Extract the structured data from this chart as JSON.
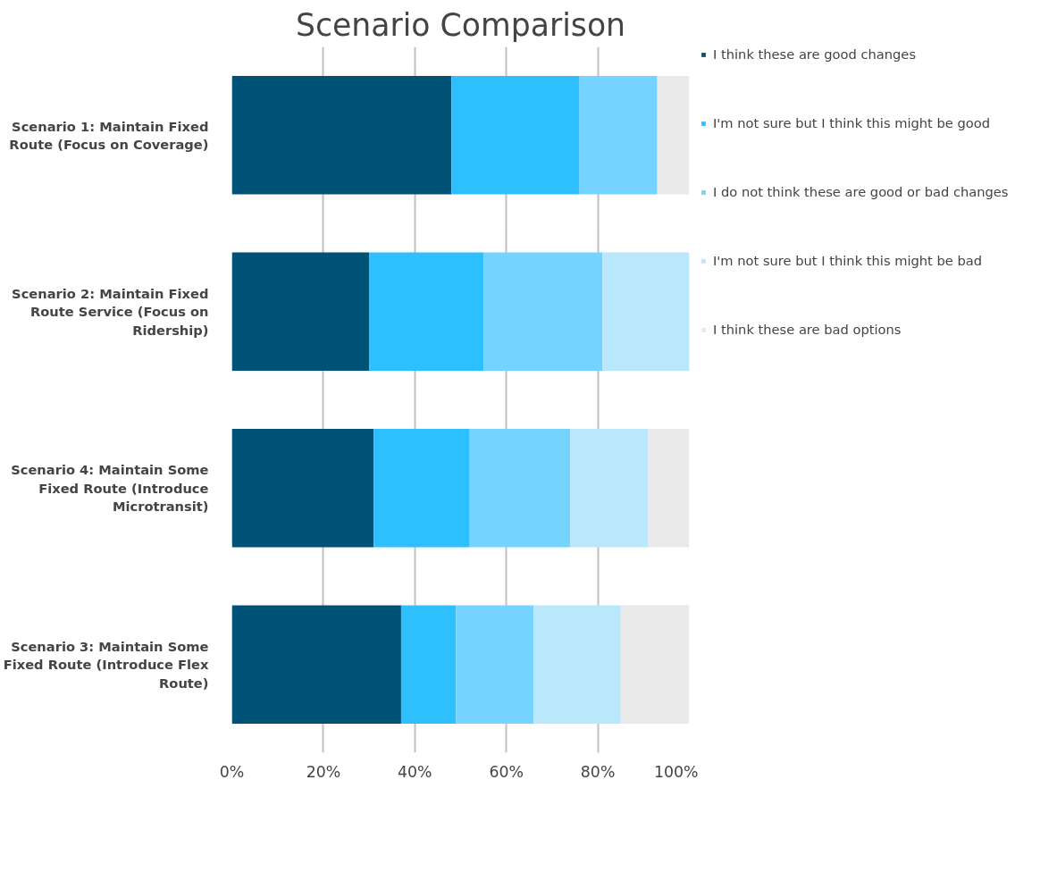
{
  "chart_data": {
    "type": "bar",
    "title": "Scenario Comparison",
    "orientation": "horizontal",
    "stacked": true,
    "categories": [
      "Scenario 1: Maintain Fixed Route (Focus on Coverage)",
      "Scenario 2: Maintain Fixed Route Service (Focus on Ridership)",
      "Scenario 4: Maintain Some Fixed Route (Introduce Microtransit)",
      "Scenario 3: Maintain Some Fixed Route (Introduce Flex Route)"
    ],
    "series": [
      {
        "name": "I think these are good changes",
        "color": "#005377",
        "values": [
          48,
          30,
          31,
          37
        ]
      },
      {
        "name": "I'm not sure but I think this might be good",
        "color": "#2ebfff",
        "values": [
          28,
          25,
          21,
          12
        ]
      },
      {
        "name": "I do not think these are good or bad changes",
        "color": "#75d3ff",
        "values": [
          17,
          26,
          22,
          17
        ]
      },
      {
        "name": "I'm not sure but I think this might be bad",
        "color": "#b9e8fd",
        "values": [
          0,
          19,
          17,
          19
        ]
      },
      {
        "name": "I think these are bad options",
        "color": "#e9e9e9",
        "values": [
          7,
          0,
          9,
          15
        ]
      }
    ],
    "xlim": [
      0,
      100
    ],
    "xticks": [
      {
        "value": 0,
        "label": "0%"
      },
      {
        "value": 20,
        "label": "20%"
      },
      {
        "value": 40,
        "label": "40%"
      },
      {
        "value": 60,
        "label": "60%"
      },
      {
        "value": 80,
        "label": "80%"
      },
      {
        "value": 100,
        "label": "100%"
      }
    ],
    "grid": "x",
    "legend": "right"
  }
}
